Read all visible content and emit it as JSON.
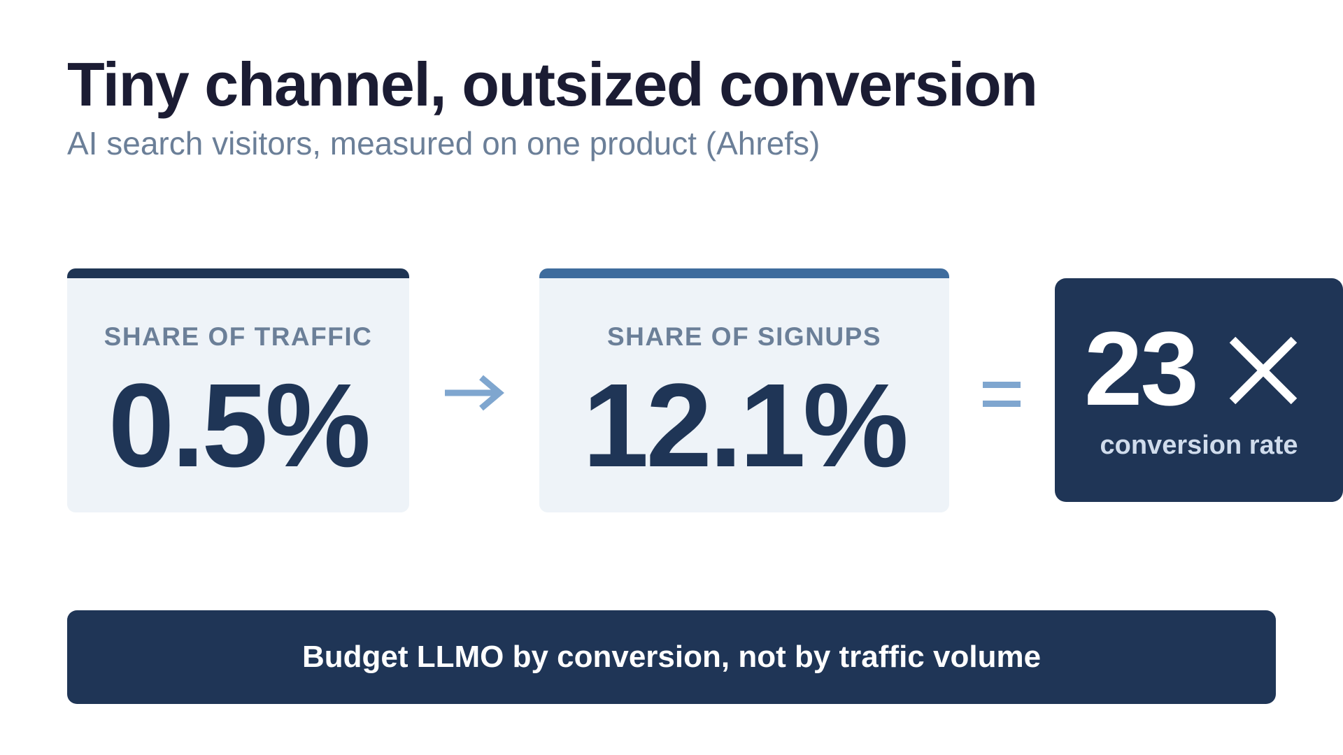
{
  "header": {
    "title": "Tiny channel, outsized conversion",
    "subtitle": "AI search visitors, measured on one product (Ahrefs)"
  },
  "metrics": [
    {
      "label": "SHARE OF TRAFFIC",
      "value": "0.5%"
    },
    {
      "label": "SHARE OF SIGNUPS",
      "value": "12.1%"
    }
  ],
  "result": {
    "value": "23",
    "multiplier_icon": "times-icon",
    "caption": "conversion rate"
  },
  "operators": {
    "arrow_icon": "arrow-right-icon",
    "equals_icon": "equals-icon"
  },
  "banner": {
    "text": "Budget LLMO by conversion, not by traffic volume"
  },
  "colors": {
    "title": "#1b1c33",
    "subtitle": "#6b7f98",
    "card_bg": "#eef3f8",
    "navy": "#1f3556",
    "accent_blue": "#3f6c9d",
    "operator_blue": "#7fa6cf"
  }
}
